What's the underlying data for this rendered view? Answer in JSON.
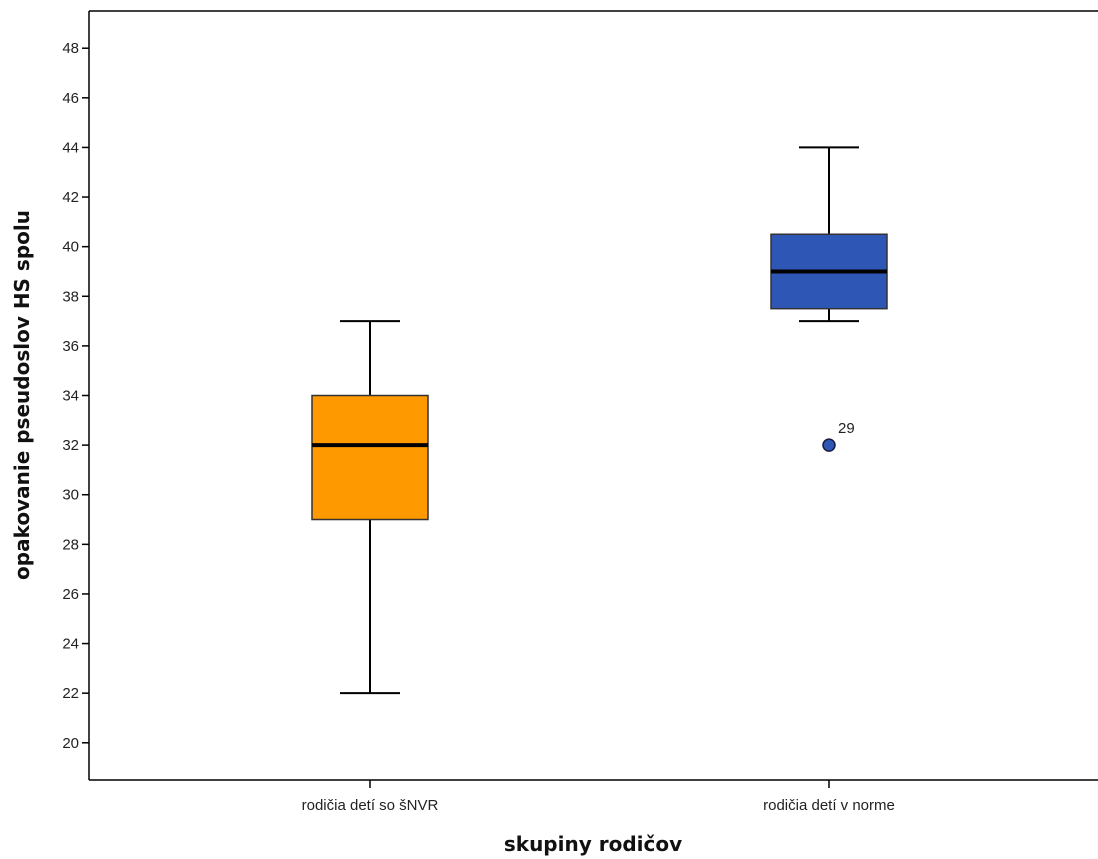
{
  "chart_data": {
    "type": "boxplot",
    "title": "",
    "xlabel": "skupiny rodičov",
    "ylabel": "opakovanie pseudoslov HS spolu",
    "ylim": [
      18.5,
      49.5
    ],
    "yticks": [
      20,
      22,
      24,
      26,
      28,
      30,
      32,
      34,
      36,
      38,
      40,
      42,
      44,
      46,
      48
    ],
    "grid": false,
    "legend": "none",
    "categories": [
      "rodičia detí so šNVR",
      "rodičia detí v norme"
    ],
    "boxes": [
      {
        "category": "rodičia detí so šNVR",
        "color": "#ff9900",
        "whisker_low": 22,
        "q1": 29,
        "median": 32,
        "q3": 34,
        "whisker_high": 37,
        "outliers": []
      },
      {
        "category": "rodičia detí v norme",
        "color": "#2e57b5",
        "whisker_low": 37,
        "q1": 37.5,
        "median": 39,
        "q3": 40.5,
        "whisker_high": 44,
        "outliers": [
          {
            "value": 32,
            "label": "29"
          }
        ]
      }
    ]
  }
}
